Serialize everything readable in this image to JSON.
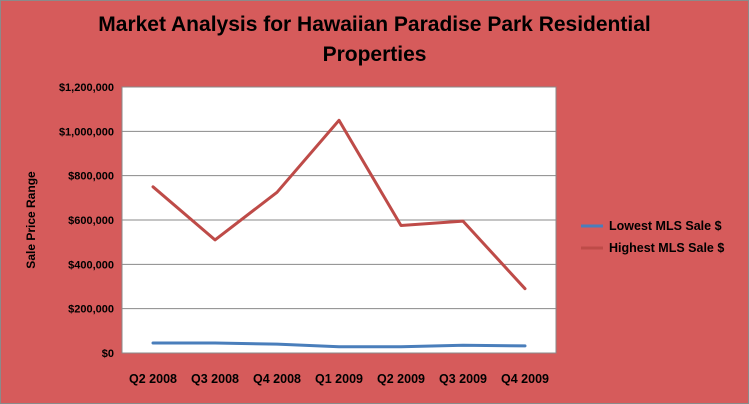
{
  "chart_data": {
    "type": "line",
    "title_line1": "Market Analysis for Hawaiian Paradise Park Residential",
    "title_line2": "Properties",
    "xlabel": "",
    "ylabel": "Sale Price Range",
    "categories": [
      "Q2 2008",
      "Q3 2008",
      "Q4 2008",
      "Q1 2009",
      "Q2 2009",
      "Q3 2009",
      "Q4 2009"
    ],
    "y_ticks": [
      0,
      200000,
      400000,
      600000,
      800000,
      1000000,
      1200000
    ],
    "y_tick_labels": [
      "$0",
      "$200,000",
      "$400,000",
      "$600,000",
      "$800,000",
      "$1,000,000",
      "$1,200,000"
    ],
    "ylim": [
      0,
      1200000
    ],
    "grid": true,
    "legend_placement": "right",
    "series": [
      {
        "name": "Lowest MLS Sale $",
        "color": "#4a7ebb",
        "values": [
          45000,
          45000,
          40000,
          28000,
          28000,
          35000,
          32000
        ]
      },
      {
        "name": "Highest MLS Sale $",
        "color": "#be4b48",
        "values": [
          750000,
          510000,
          725000,
          1050000,
          575000,
          595000,
          290000
        ]
      }
    ]
  }
}
